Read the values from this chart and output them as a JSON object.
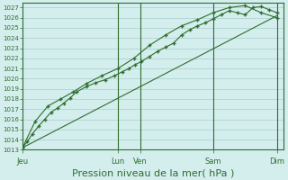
{
  "xlabel": "Pression niveau de la mer( hPa )",
  "bg_color": "#d4eeee",
  "grid_major_color": "#aacccc",
  "grid_minor_color": "#c0dddd",
  "line_color": "#2d6e2d",
  "ylim": [
    1013,
    1027.5
  ],
  "xlim": [
    0,
    8.2
  ],
  "yticks": [
    1013,
    1014,
    1015,
    1016,
    1017,
    1018,
    1019,
    1020,
    1021,
    1022,
    1023,
    1024,
    1025,
    1026,
    1027
  ],
  "xtick_labels": [
    "Jeu",
    "Lun",
    "Ven",
    "Sam",
    "Dim"
  ],
  "xtick_positions": [
    0.0,
    3.0,
    3.7,
    6.0,
    8.0
  ],
  "vline_positions": [
    3.0,
    3.7,
    6.0,
    8.0
  ],
  "series1_x": [
    0.0,
    0.15,
    0.3,
    0.5,
    0.7,
    0.9,
    1.1,
    1.3,
    1.5,
    1.7,
    2.0,
    2.3,
    2.6,
    2.9,
    3.15,
    3.35,
    3.55,
    3.75,
    4.0,
    4.25,
    4.5,
    4.75,
    5.0,
    5.25,
    5.5,
    5.75,
    6.0,
    6.25,
    6.5,
    6.75,
    7.0,
    7.25,
    7.5,
    7.75,
    8.0
  ],
  "series1_y": [
    1013.2,
    1013.8,
    1014.5,
    1015.3,
    1016.0,
    1016.7,
    1017.1,
    1017.6,
    1018.1,
    1018.7,
    1019.2,
    1019.6,
    1019.9,
    1020.3,
    1020.7,
    1021.0,
    1021.4,
    1021.7,
    1022.2,
    1022.7,
    1023.1,
    1023.5,
    1024.3,
    1024.8,
    1025.2,
    1025.5,
    1025.9,
    1026.3,
    1026.7,
    1026.5,
    1026.3,
    1027.0,
    1027.1,
    1026.8,
    1026.5
  ],
  "series2_x": [
    0.0,
    0.4,
    0.8,
    1.2,
    1.6,
    2.0,
    2.5,
    3.0,
    3.5,
    4.0,
    4.5,
    5.0,
    5.5,
    6.0,
    6.5,
    7.0,
    7.5,
    8.0
  ],
  "series2_y": [
    1013.2,
    1015.8,
    1017.3,
    1018.0,
    1018.7,
    1019.5,
    1020.3,
    1021.0,
    1022.0,
    1023.3,
    1024.3,
    1025.2,
    1025.8,
    1026.5,
    1027.0,
    1027.2,
    1026.5,
    1026.0
  ],
  "series3_x": [
    0.0,
    8.0
  ],
  "series3_y": [
    1013.2,
    1026.2
  ],
  "marker": "+",
  "markersize": 3.5,
  "xlabel_fontsize": 8,
  "tick_fontsize": 5
}
